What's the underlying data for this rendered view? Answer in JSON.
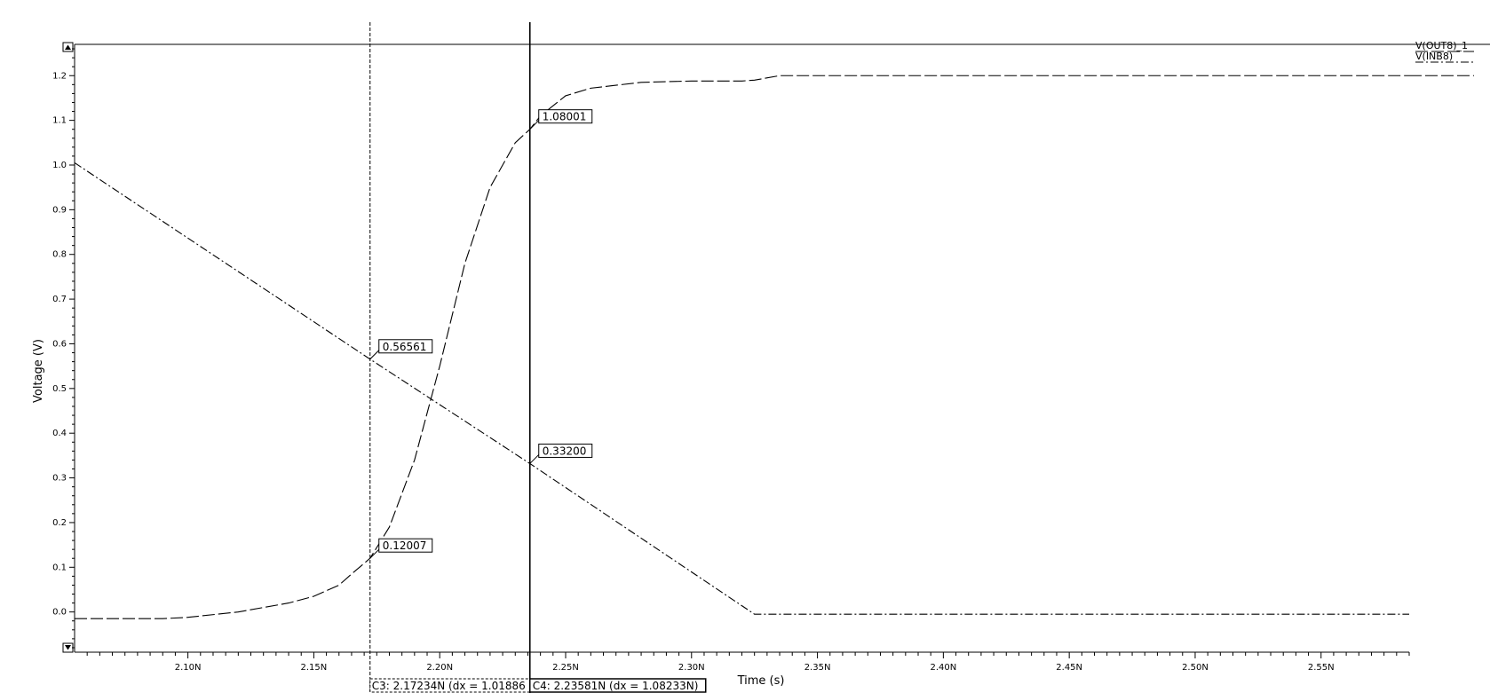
{
  "chart_data": {
    "type": "line",
    "xlabel": "Time (s)",
    "ylabel": "Voltage (V)",
    "x_unit_suffix": "N",
    "xlim": [
      2.055,
      2.585
    ],
    "ylim": [
      -0.09,
      1.27
    ],
    "x_ticks": [
      2.1,
      2.15,
      2.2,
      2.25,
      2.3,
      2.35,
      2.4,
      2.45,
      2.5,
      2.55
    ],
    "x_tick_labels": [
      "2.10N",
      "2.15N",
      "2.20N",
      "2.25N",
      "2.30N",
      "2.35N",
      "2.40N",
      "2.45N",
      "2.50N",
      "2.55N"
    ],
    "y_ticks": [
      0.0,
      0.1,
      0.2,
      0.3,
      0.4,
      0.5,
      0.6,
      0.7,
      0.8,
      0.9,
      1.0,
      1.1,
      1.2
    ],
    "y_tick_labels": [
      "0.0",
      "0.1",
      "0.2",
      "0.3",
      "0.4",
      "0.5",
      "0.6",
      "0.7",
      "0.8",
      "0.9",
      "1.0",
      "1.1",
      "1.2"
    ],
    "grid": false,
    "legend_position": "top-right",
    "series": [
      {
        "name": "V(OUT8)_1",
        "dash": "long-dash",
        "x": [
          2.055,
          2.09,
          2.1,
          2.12,
          2.14,
          2.15,
          2.16,
          2.165,
          2.17234,
          2.18,
          2.19,
          2.2,
          2.21,
          2.22,
          2.23,
          2.23581,
          2.24,
          2.25,
          2.26,
          2.28,
          2.3,
          2.32,
          2.325,
          2.335,
          2.585
        ],
        "y": [
          -0.015,
          -0.015,
          -0.012,
          0.0,
          0.02,
          0.035,
          0.06,
          0.085,
          0.12007,
          0.19,
          0.34,
          0.55,
          0.78,
          0.95,
          1.05,
          1.08001,
          1.11,
          1.155,
          1.172,
          1.185,
          1.188,
          1.188,
          1.19,
          1.2,
          1.2
        ]
      },
      {
        "name": "V(INB8)",
        "dash": "dash-dot",
        "x": [
          2.055,
          2.17234,
          2.23581,
          2.325,
          2.585
        ],
        "y": [
          1.005,
          0.56561,
          0.332,
          -0.005,
          -0.005
        ]
      }
    ],
    "cursors": [
      {
        "id": "C3",
        "x": 2.17234,
        "style": "dashed",
        "label": "C3: 2.17234N (dx = 1.01886",
        "markers": [
          {
            "value": 0.56561,
            "label": "0.56561"
          },
          {
            "value": 0.12007,
            "label": "0.12007"
          }
        ]
      },
      {
        "id": "C4",
        "x": 2.23581,
        "style": "solid",
        "label": "C4: 2.23581N (dx = 1.08233N)",
        "markers": [
          {
            "value": 1.08001,
            "label": "1.08001"
          },
          {
            "value": 0.332,
            "label": "0.33200"
          }
        ]
      }
    ]
  }
}
